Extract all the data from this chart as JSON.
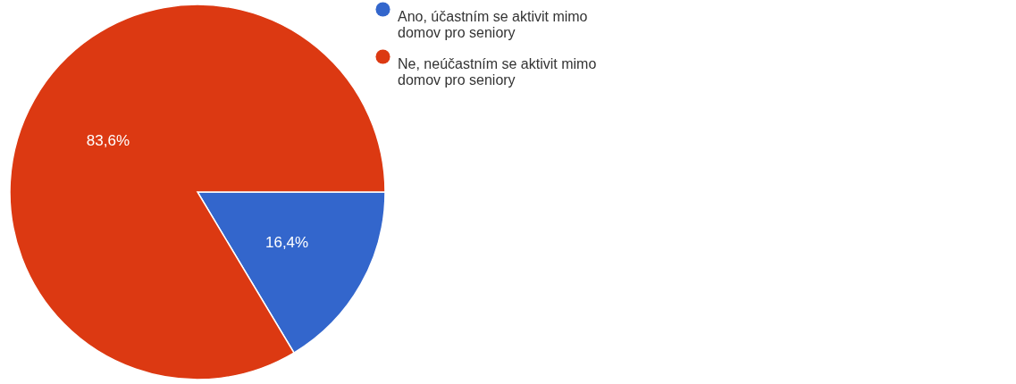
{
  "chart_data": {
    "type": "pie",
    "categories": [
      "Ano, účastním se aktivit mimo domov pro seniory",
      "Ne, neúčastním se aktivit mimo domov pro seniory"
    ],
    "values": [
      16.4,
      83.6
    ],
    "colors": [
      "#3366cc",
      "#dc3912"
    ],
    "value_labels": [
      "16,4%",
      "83,6%"
    ],
    "legend": "top right"
  }
}
